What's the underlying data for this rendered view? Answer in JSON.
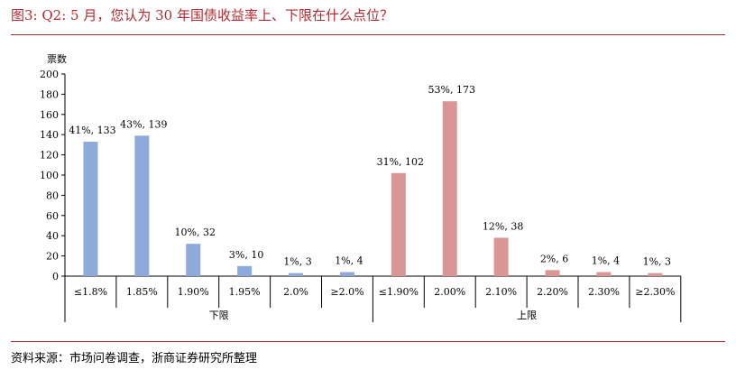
{
  "figure": {
    "title": "图3:   Q2:  5 月，您认为 30 年国债收益率上、下限在什么点位？",
    "source": "资料来源：市场问卷调查，浙商证券研究所整理"
  },
  "chart_data": {
    "type": "bar",
    "ylabel": "票数",
    "ylim": [
      0,
      200
    ],
    "yticks": [
      0,
      20,
      40,
      60,
      80,
      100,
      120,
      140,
      160,
      180,
      200
    ],
    "grid": false,
    "groups": [
      {
        "name": "下限",
        "color": "#8eaadb",
        "categories": [
          "≤1.8%",
          "1.85%",
          "1.90%",
          "1.95%",
          "2.0%",
          "≥2.0%"
        ],
        "values": [
          133,
          139,
          32,
          10,
          3,
          4
        ],
        "labels": [
          "41%, 133",
          "43%, 139",
          "10%, 32",
          "3%, 10",
          "1%, 3",
          "1%, 4"
        ]
      },
      {
        "name": "上限",
        "color": "#d99694",
        "categories": [
          "≤1.90%",
          "2.00%",
          "2.10%",
          "2.20%",
          "2.30%",
          "≥2.30%"
        ],
        "values": [
          102,
          173,
          38,
          6,
          4,
          3
        ],
        "labels": [
          "31%, 102",
          "53%, 173",
          "12%, 38",
          "2%, 6",
          "1%, 4",
          "1%, 3"
        ]
      }
    ]
  }
}
